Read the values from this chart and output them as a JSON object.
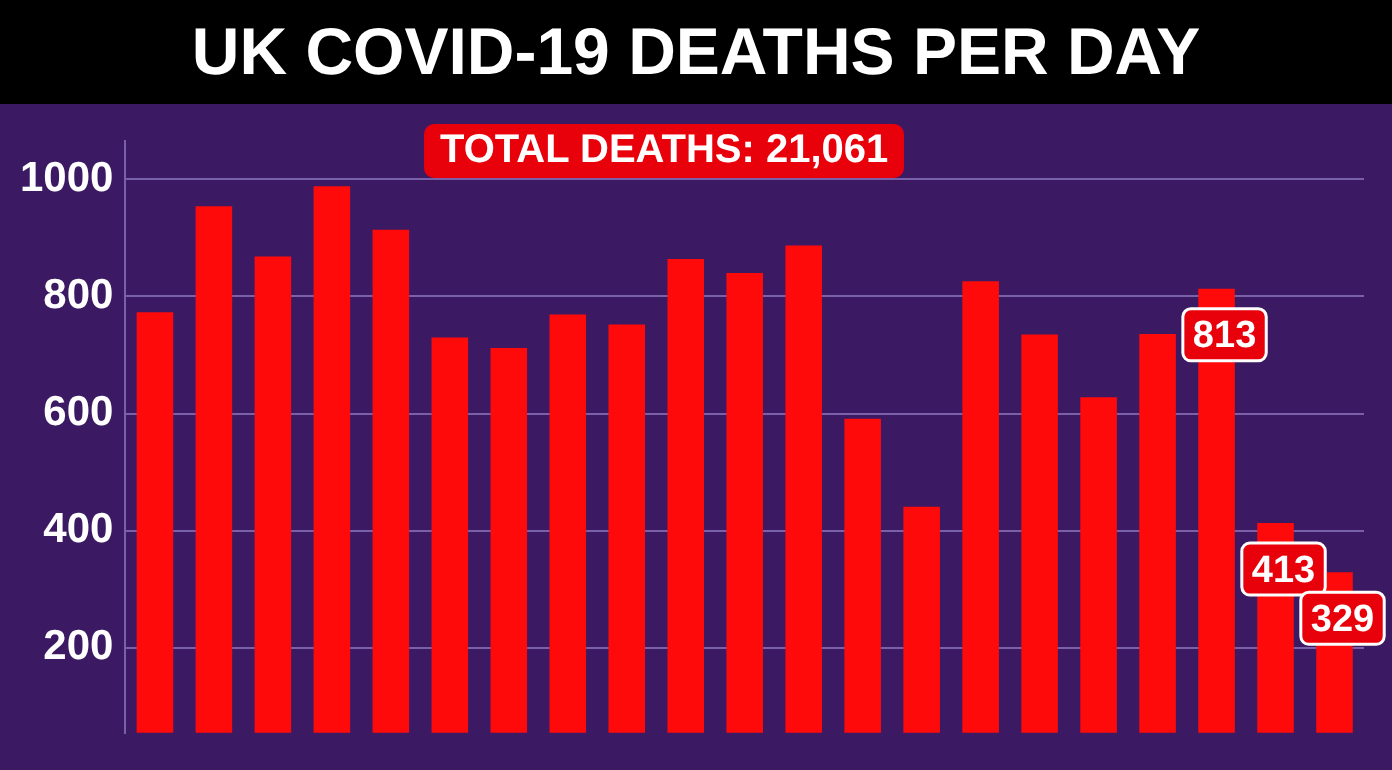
{
  "chart_data": {
    "type": "bar",
    "title": "UK COVID-19 DEATHS PER DAY",
    "annotations": [
      "TOTAL DEATHS: 21,061"
    ],
    "categories": [
      null,
      null,
      null,
      null,
      null,
      null,
      null,
      null,
      null,
      null,
      null,
      null,
      null,
      null,
      null,
      null,
      null,
      null,
      null,
      null,
      null
    ],
    "values": [
      773,
      954,
      868,
      988,
      914,
      730,
      712,
      769,
      752,
      864,
      840,
      887,
      591,
      441,
      826,
      735,
      628,
      736,
      813,
      413,
      329
    ],
    "value_labels": [
      null,
      null,
      null,
      null,
      null,
      null,
      null,
      null,
      null,
      null,
      null,
      null,
      null,
      null,
      null,
      null,
      null,
      null,
      "813",
      "413",
      "329"
    ],
    "color": "#ff0a0a",
    "ylim": [
      55,
      1065
    ],
    "yticks": [
      200,
      400,
      600,
      800,
      1000
    ],
    "grid": "y",
    "tick_labels": "y"
  }
}
